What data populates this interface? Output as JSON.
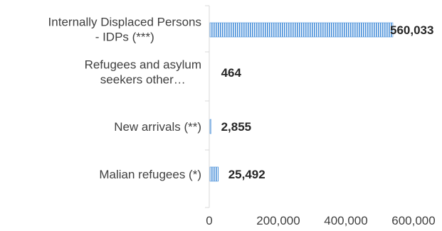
{
  "chart_data": {
    "type": "bar",
    "orientation": "horizontal",
    "categories": [
      [
        "Internally Displaced Persons",
        "- IDPs (***)"
      ],
      [
        "Refugees and asylum",
        "seekers other…"
      ],
      [
        "New arrivals (**)"
      ],
      [
        "Malian refugees (*)"
      ]
    ],
    "values": [
      560033,
      464,
      2855,
      25492
    ],
    "data_labels": [
      "560,033",
      "464",
      "2,855",
      "25,492"
    ],
    "x_ticks": [
      0,
      200000,
      400000,
      600000
    ],
    "x_tick_labels": [
      "0",
      "200,000",
      "400,000",
      "600,000"
    ],
    "xlim": [
      0,
      700000
    ],
    "grid": false,
    "bar_color": "#4a90d9",
    "bar_fill": "vertical-hatch"
  }
}
